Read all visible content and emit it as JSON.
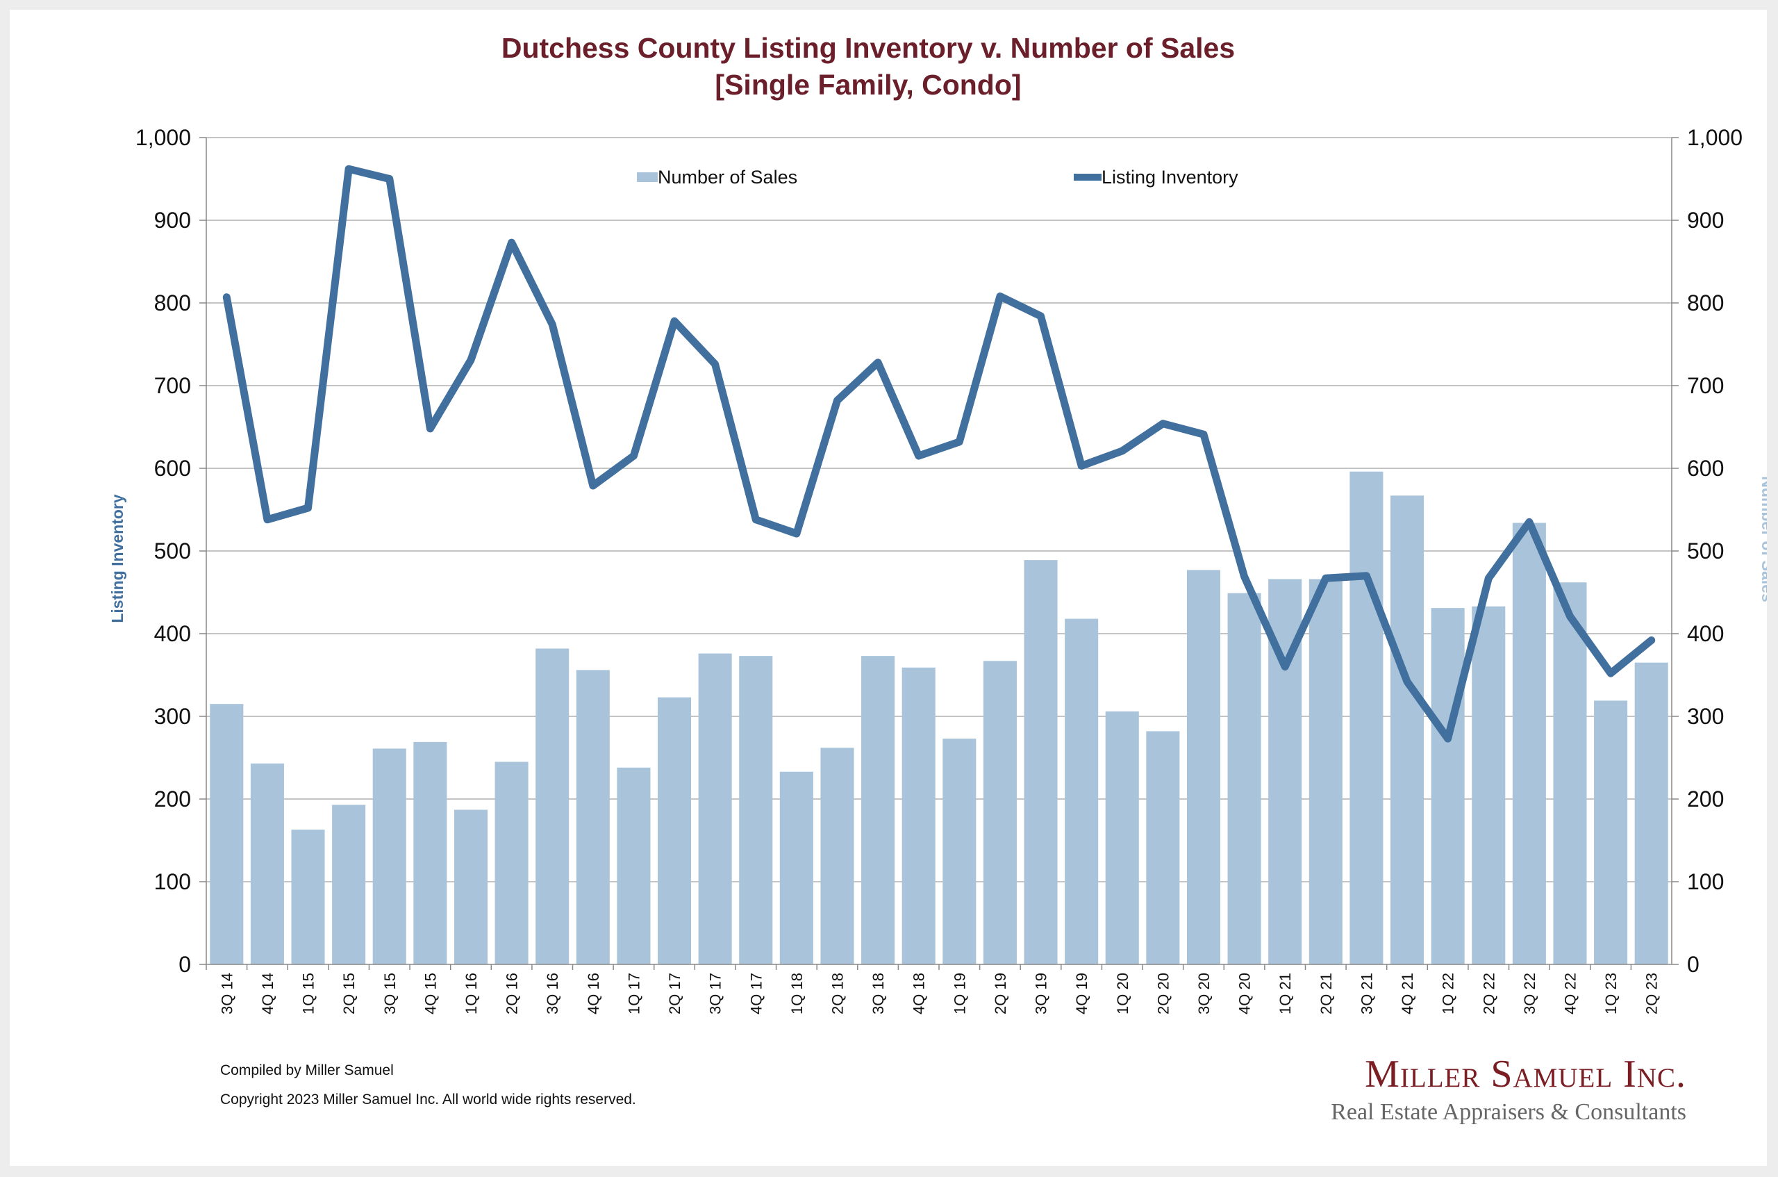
{
  "title_line1": "Dutchess County Listing Inventory v. Number of Sales",
  "title_line2": "[Single Family, Condo]",
  "colors": {
    "title": "#6b1f2a",
    "bars": "#a9c4da",
    "line": "#41709f",
    "grid": "#b0b0b0",
    "axis_text": "#111111"
  },
  "footer": {
    "compiled": "Compiled by Miller Samuel",
    "copyright": "Copyright 2023 Miller Samuel Inc.  All world wide rights reserved."
  },
  "logo": {
    "name": "Miller Samuel Inc.",
    "tagline": "Real Estate Appraisers & Consultants"
  },
  "chart_data": {
    "type": "bar",
    "title": "Dutchess County Listing Inventory v. Number of Sales [Single Family, Condo]",
    "categories": [
      "3Q 14",
      "4Q 14",
      "1Q 15",
      "2Q 15",
      "3Q 15",
      "4Q 15",
      "1Q 16",
      "2Q 16",
      "3Q 16",
      "4Q 16",
      "1Q 17",
      "2Q 17",
      "3Q 17",
      "4Q 17",
      "1Q 18",
      "2Q 18",
      "3Q 18",
      "4Q 18",
      "1Q 19",
      "2Q 19",
      "3Q 19",
      "4Q 19",
      "1Q 20",
      "2Q 20",
      "3Q 20",
      "4Q 20",
      "1Q 21",
      "2Q 21",
      "3Q 21",
      "4Q 21",
      "1Q 22",
      "2Q 22",
      "3Q 22",
      "4Q 22",
      "1Q 23",
      "2Q 23"
    ],
    "series": [
      {
        "name": "Number of Sales",
        "type": "bar",
        "axis": "right",
        "values": [
          315,
          243,
          163,
          193,
          261,
          269,
          187,
          245,
          382,
          356,
          238,
          323,
          376,
          373,
          233,
          262,
          373,
          359,
          273,
          367,
          489,
          418,
          306,
          282,
          477,
          449,
          466,
          466,
          596,
          567,
          431,
          433,
          534,
          462,
          319,
          365
        ]
      },
      {
        "name": "Listing Inventory",
        "type": "line",
        "axis": "left",
        "values": [
          807,
          538,
          552,
          962,
          950,
          648,
          731,
          873,
          774,
          579,
          615,
          778,
          726,
          538,
          521,
          682,
          728,
          615,
          632,
          808,
          784,
          603,
          621,
          654,
          641,
          469,
          360,
          467,
          470,
          342,
          273,
          467,
          535,
          421,
          352,
          392
        ]
      }
    ],
    "ylabel_left": "Listing Inventory",
    "ylabel_right": "Number of Sales",
    "ylim": [
      0,
      1000
    ],
    "yticks": [
      "0",
      "100",
      "200",
      "300",
      "400",
      "500",
      "600",
      "700",
      "800",
      "900",
      "1,000"
    ],
    "grid": true,
    "legend": "top-center"
  }
}
